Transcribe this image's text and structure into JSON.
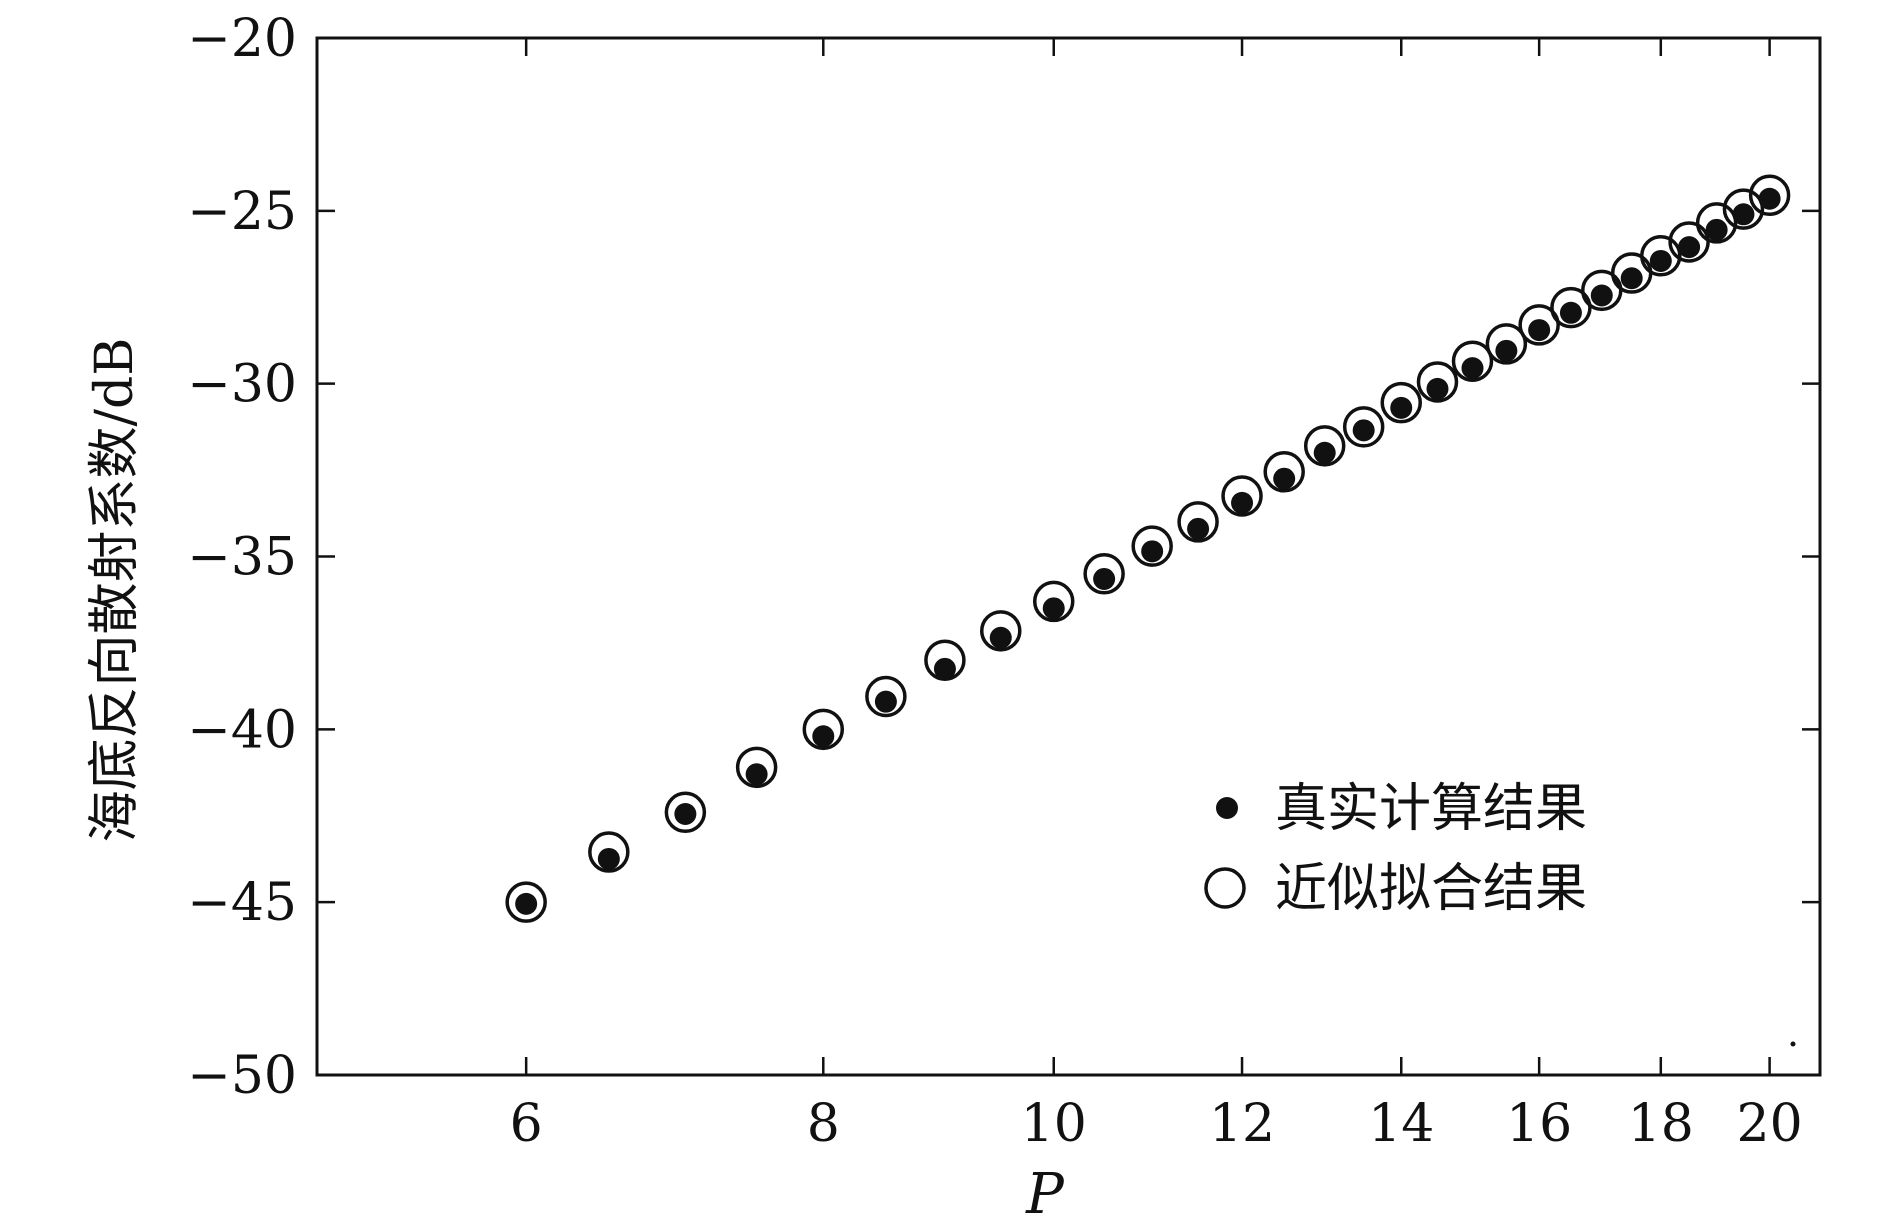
{
  "chart_data": {
    "type": "scatter",
    "title": "",
    "xlabel": "P",
    "ylabel": "海底反向散射系数/dB",
    "xscale": "log",
    "xlim": [
      4.9,
      21
    ],
    "ylim": [
      -50,
      -20
    ],
    "xticks": [
      6,
      8,
      10,
      12,
      14,
      16,
      18,
      20
    ],
    "xtick_labels": [
      "6",
      "8",
      "10",
      "12",
      "14",
      "16",
      "18",
      "20"
    ],
    "yticks": [
      -20,
      -25,
      -30,
      -35,
      -40,
      -45,
      -50
    ],
    "ytick_labels": [
      "−20",
      "−25",
      "−30",
      "−35",
      "−40",
      "−45",
      "−50"
    ],
    "grid": false,
    "legend_position": "lower-right",
    "series": [
      {
        "name": "真实计算结果",
        "marker": "filled-circle",
        "color": "#111111",
        "points": [
          [
            6,
            -45.05
          ],
          [
            6.5,
            -43.75
          ],
          [
            7,
            -42.45
          ],
          [
            7.5,
            -41.3
          ],
          [
            8,
            -40.2
          ],
          [
            8.5,
            -39.2
          ],
          [
            9,
            -38.25
          ],
          [
            9.5,
            -37.35
          ],
          [
            10,
            -36.5
          ],
          [
            10.5,
            -35.65
          ],
          [
            11,
            -34.85
          ],
          [
            11.5,
            -34.2
          ],
          [
            12,
            -33.45
          ],
          [
            12.5,
            -32.75
          ],
          [
            13,
            -32.0
          ],
          [
            13.5,
            -31.35
          ],
          [
            14,
            -30.7
          ],
          [
            14.5,
            -30.15
          ],
          [
            15,
            -29.55
          ],
          [
            15.5,
            -29.05
          ],
          [
            16,
            -28.45
          ],
          [
            16.5,
            -27.95
          ],
          [
            17,
            -27.45
          ],
          [
            17.5,
            -26.95
          ],
          [
            18,
            -26.45
          ],
          [
            18.5,
            -26.05
          ],
          [
            19,
            -25.55
          ],
          [
            19.5,
            -25.1
          ],
          [
            20,
            -24.65
          ]
        ]
      },
      {
        "name": "近似拟合结果",
        "marker": "open-circle",
        "color": "#111111",
        "points": [
          [
            6,
            -45.0
          ],
          [
            6.5,
            -43.55
          ],
          [
            7,
            -42.4
          ],
          [
            7.5,
            -41.1
          ],
          [
            8,
            -40.0
          ],
          [
            8.5,
            -39.05
          ],
          [
            9,
            -38.0
          ],
          [
            9.5,
            -37.15
          ],
          [
            10,
            -36.3
          ],
          [
            10.5,
            -35.5
          ],
          [
            11,
            -34.7
          ],
          [
            11.5,
            -34.0
          ],
          [
            12,
            -33.25
          ],
          [
            12.5,
            -32.55
          ],
          [
            13,
            -31.8
          ],
          [
            13.5,
            -31.25
          ],
          [
            14,
            -30.55
          ],
          [
            14.5,
            -29.95
          ],
          [
            15,
            -29.35
          ],
          [
            15.5,
            -28.85
          ],
          [
            16,
            -28.3
          ],
          [
            16.5,
            -27.8
          ],
          [
            17,
            -27.3
          ],
          [
            17.5,
            -26.8
          ],
          [
            18,
            -26.3
          ],
          [
            18.5,
            -25.9
          ],
          [
            19,
            -25.35
          ],
          [
            19.5,
            -24.95
          ],
          [
            20,
            -24.55
          ]
        ]
      }
    ]
  }
}
